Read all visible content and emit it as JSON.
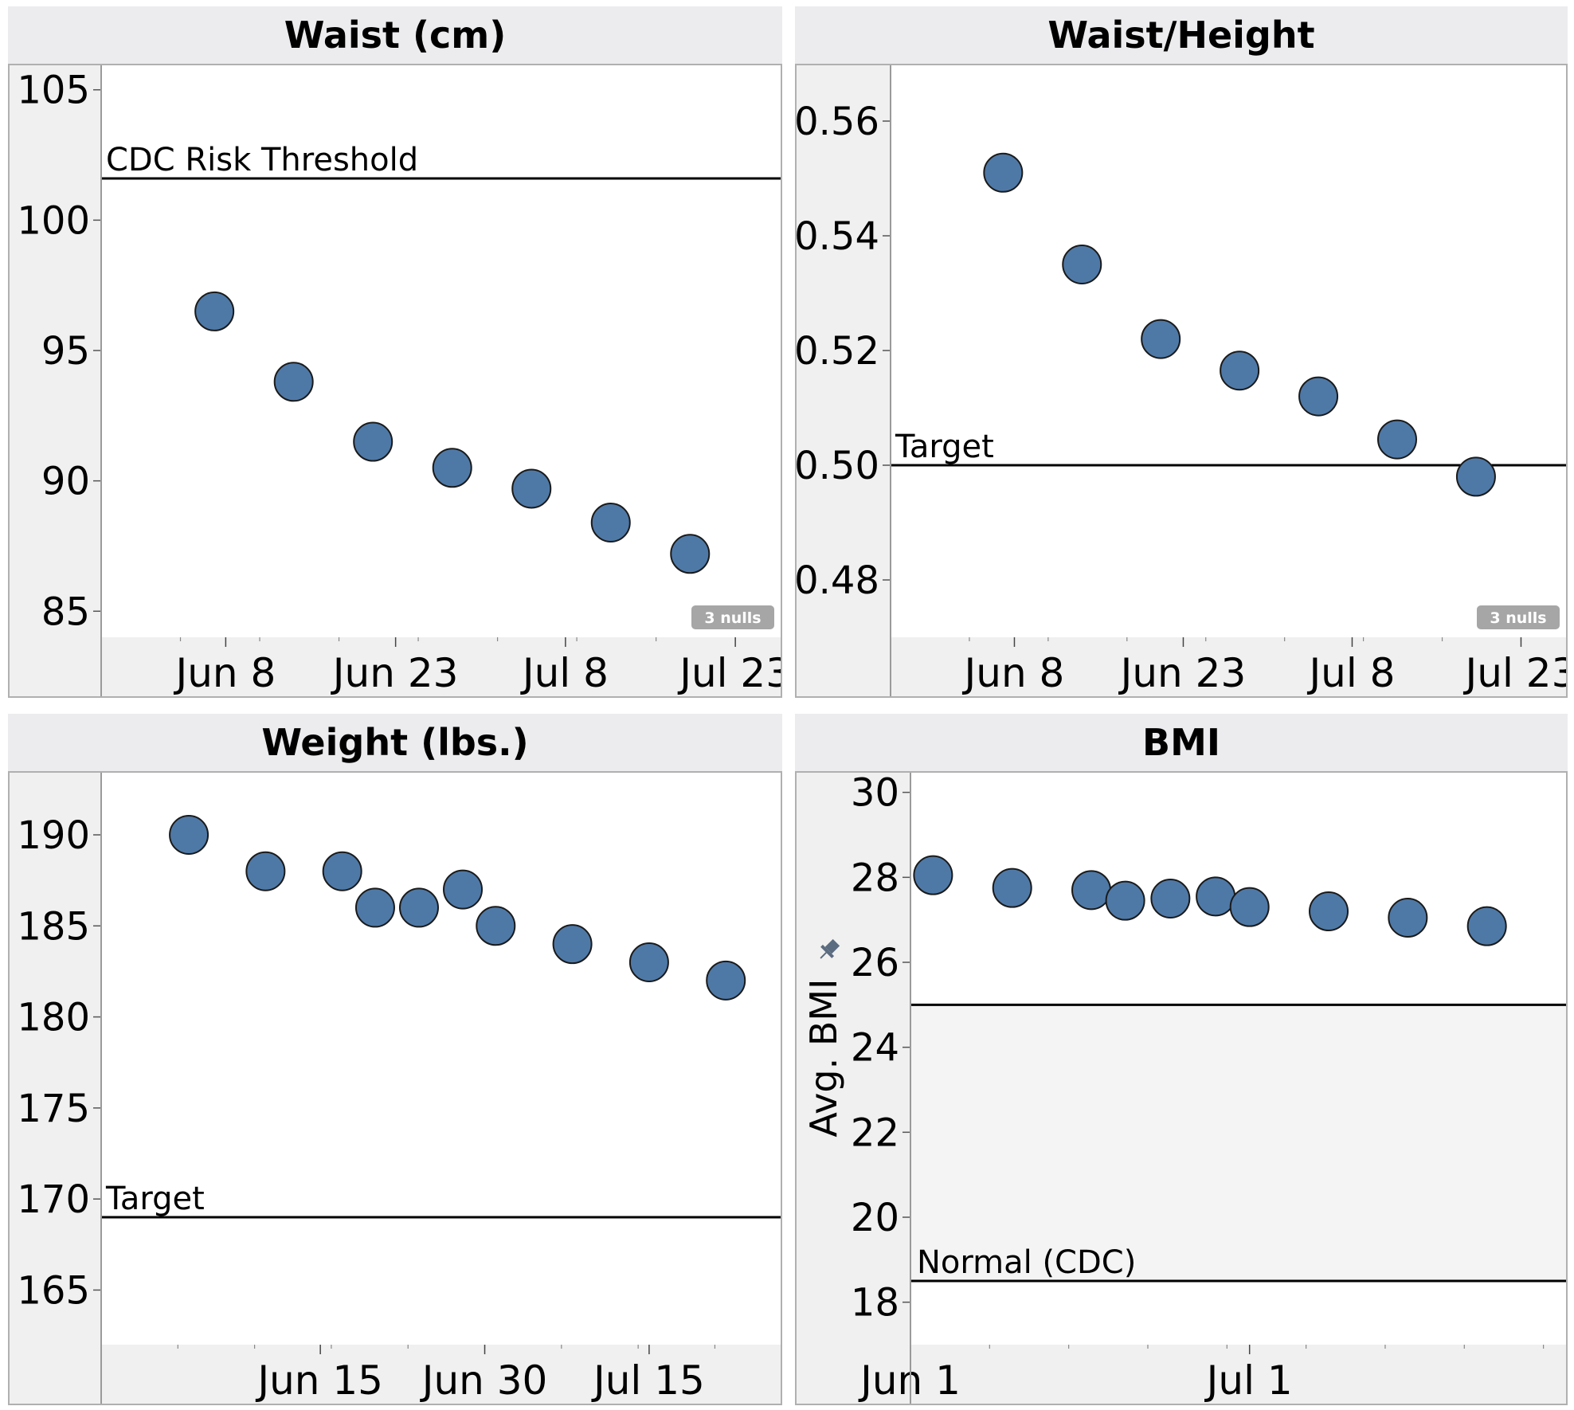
{
  "chart_data": [
    {
      "type": "scatter",
      "title": "Waist (cm)",
      "x": [
        "2014-06-07",
        "2014-06-14",
        "2014-06-21",
        "2014-06-28",
        "2014-07-05",
        "2014-07-12",
        "2014-07-19"
      ],
      "values": [
        96.5,
        93.8,
        91.5,
        90.5,
        89.7,
        88.4,
        87.2
      ],
      "ylim": [
        84,
        106
      ],
      "xlim": [
        "2014-05-28",
        "2014-07-27"
      ],
      "yticks": [
        85,
        90,
        95,
        100,
        105
      ],
      "yticklabels": [
        "85",
        "90",
        "95",
        "100",
        "105"
      ],
      "xticks": [
        "2014-06-08",
        "2014-06-23",
        "2014-07-08",
        "2014-07-23"
      ],
      "xticklabels": [
        "Jun 8",
        "Jun 23",
        "Jul 8",
        "Jul 23"
      ],
      "reference_lines": [
        {
          "value": 101.6,
          "label": "CDC Risk Threshold"
        }
      ],
      "nulls_badge": "3 nulls",
      "ylabel": "",
      "grid": false
    },
    {
      "type": "scatter",
      "title": "Waist/Height",
      "x": [
        "2014-06-07",
        "2014-06-14",
        "2014-06-21",
        "2014-06-28",
        "2014-07-05",
        "2014-07-12",
        "2014-07-19"
      ],
      "values": [
        0.551,
        0.535,
        0.522,
        0.5165,
        0.512,
        0.5045,
        0.498
      ],
      "ylim": [
        0.47,
        0.57
      ],
      "xlim": [
        "2014-05-28",
        "2014-07-27"
      ],
      "yticks": [
        0.48,
        0.5,
        0.52,
        0.54,
        0.56
      ],
      "yticklabels": [
        "0.48",
        "0.50",
        "0.52",
        "0.54",
        "0.56"
      ],
      "xticks": [
        "2014-06-08",
        "2014-06-23",
        "2014-07-08",
        "2014-07-23"
      ],
      "xticklabels": [
        "Jun 8",
        "Jun 23",
        "Jul 8",
        "Jul 23"
      ],
      "reference_lines": [
        {
          "value": 0.5,
          "label": "Target"
        }
      ],
      "nulls_badge": "3 nulls",
      "ylabel": "",
      "grid": false
    },
    {
      "type": "scatter",
      "title": "Weight (lbs.)",
      "x": [
        "2014-06-03",
        "2014-06-10",
        "2014-06-17",
        "2014-06-20",
        "2014-06-24",
        "2014-06-28",
        "2014-07-01",
        "2014-07-08",
        "2014-07-15",
        "2014-07-22"
      ],
      "values": [
        190,
        188,
        188,
        186,
        186,
        187,
        185,
        184,
        183,
        182
      ],
      "ylim": [
        162,
        193.5
      ],
      "xlim": [
        "2014-05-26",
        "2014-07-27"
      ],
      "yticks": [
        165,
        170,
        175,
        180,
        185,
        190
      ],
      "yticklabels": [
        "165",
        "170",
        "175",
        "180",
        "185",
        "190"
      ],
      "xticks": [
        "2014-06-15",
        "2014-06-30",
        "2014-07-15"
      ],
      "xticklabels": [
        "Jun 15",
        "Jun 30",
        "Jul 15"
      ],
      "reference_lines": [
        {
          "value": 169,
          "label": "Target"
        }
      ],
      "ylabel": "",
      "grid": false
    },
    {
      "type": "scatter",
      "title": "BMI",
      "x": [
        "2014-06-03",
        "2014-06-10",
        "2014-06-17",
        "2014-06-20",
        "2014-06-24",
        "2014-06-28",
        "2014-07-01",
        "2014-07-08",
        "2014-07-15",
        "2014-07-22"
      ],
      "values": [
        28.05,
        27.75,
        27.7,
        27.45,
        27.5,
        27.55,
        27.3,
        27.2,
        27.05,
        26.85
      ],
      "ylim": [
        17,
        30.5
      ],
      "xlim": [
        "2014-06-01",
        "2014-07-29"
      ],
      "yticks": [
        18,
        20,
        22,
        24,
        26,
        28,
        30
      ],
      "yticklabels": [
        "18",
        "20",
        "22",
        "24",
        "26",
        "28",
        "30"
      ],
      "xticks": [
        "2014-06-01",
        "2014-07-01"
      ],
      "xticklabels": [
        "Jun 1",
        "Jul 1"
      ],
      "reference_band": {
        "from": 18.5,
        "to": 25,
        "label": "Normal (CDC)"
      },
      "ylabel": "Avg. BMI",
      "grid": false
    }
  ],
  "colors": {
    "marker": "#4e79a7",
    "marker_edge": "#1a1a1a",
    "header_bg": "#ececef",
    "axis_bg": "#f0f0f0",
    "band_fill": "#f4f4f4",
    "badge_bg": "#a6a6a6",
    "pin_icon": "#5b6b80"
  },
  "icons": {
    "bmi_axis": "pin-icon"
  }
}
